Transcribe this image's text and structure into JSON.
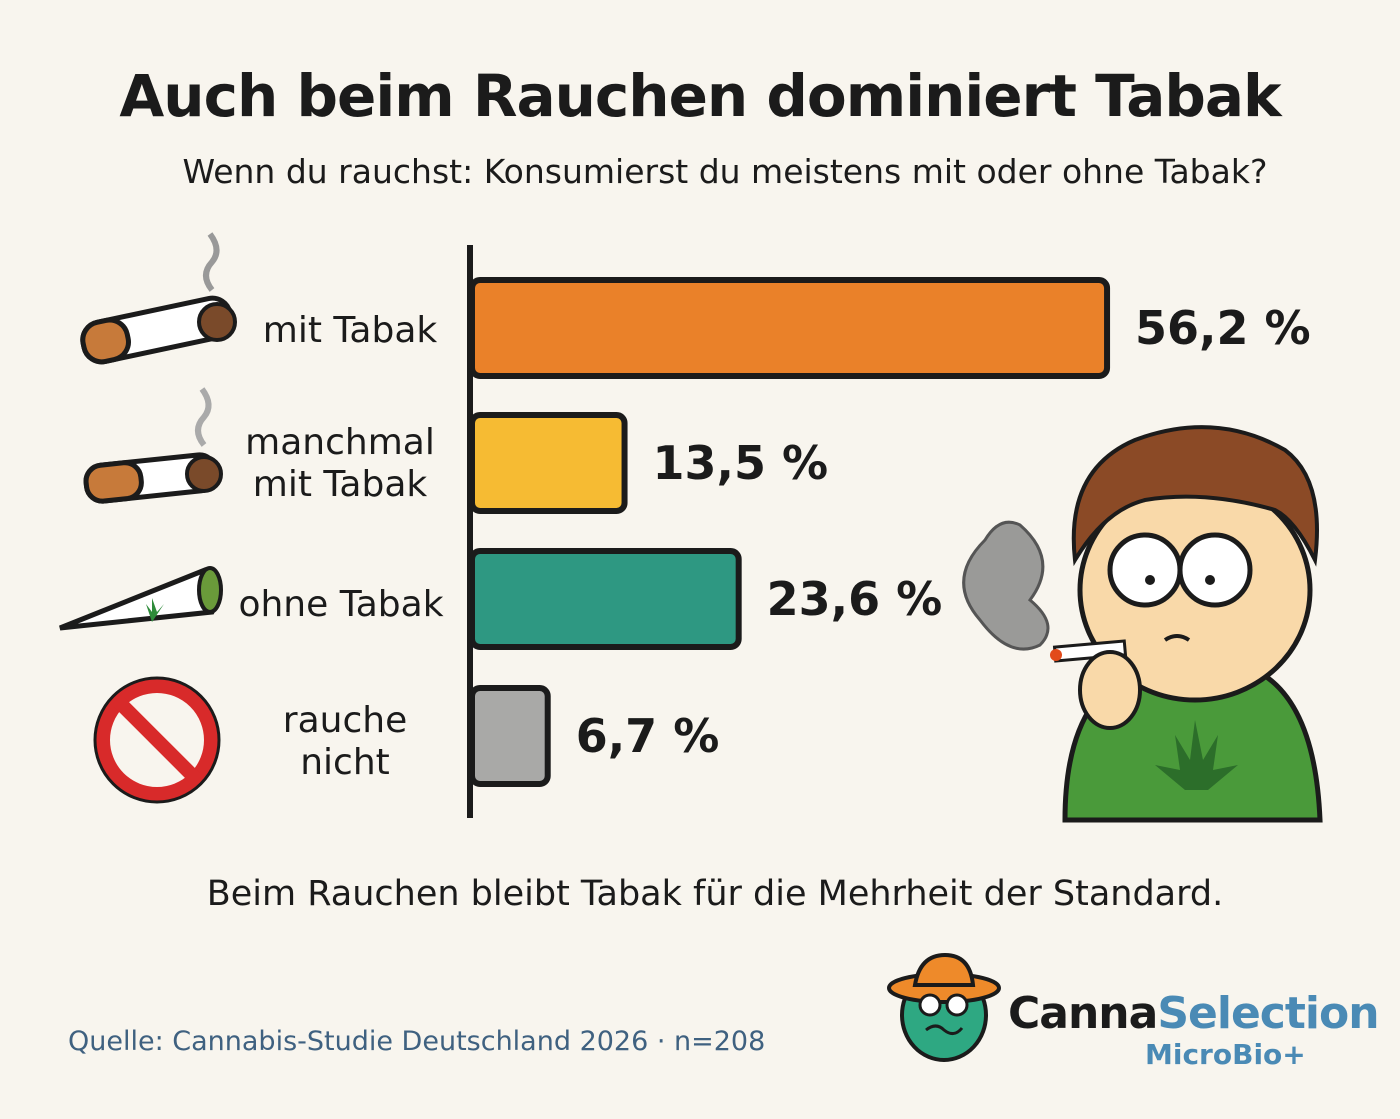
{
  "title": "Auch beim Rauchen dominiert Tabak",
  "subtitle": "Wenn du rauchst: Konsumierst du meistens mit oder ohne Tabak?",
  "caption": "Beim Rauchen bleibt Tabak für die Mehrheit der Standard.",
  "source": "Quelle: Cannabis-Studie Deutschland 2026 · n=208",
  "logo": {
    "part1": "Canna",
    "part2": "Selection",
    "sub": "MicroBio+"
  },
  "chart_data": {
    "type": "bar",
    "orientation": "horizontal",
    "categories": [
      "mit Tabak",
      "manchmal mit Tabak",
      "ohne Tabak",
      "rauche nicht"
    ],
    "values": [
      56.2,
      13.5,
      23.6,
      6.7
    ],
    "value_labels": [
      "56,2 %",
      "13,5 %",
      "23,6 %",
      "6,7 %"
    ],
    "colors": [
      "#ea8129",
      "#f6bb33",
      "#2e9882",
      "#a9a9a7"
    ],
    "icons": [
      "cigarette-icon",
      "cigarette-icon",
      "joint-icon",
      "no-smoking-icon"
    ],
    "unit": "%",
    "grid": false
  }
}
